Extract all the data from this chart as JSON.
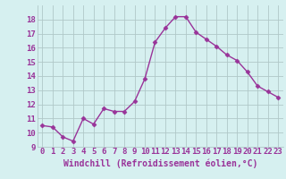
{
  "x": [
    0,
    1,
    2,
    3,
    4,
    5,
    6,
    7,
    8,
    9,
    10,
    11,
    12,
    13,
    14,
    15,
    16,
    17,
    18,
    19,
    20,
    21,
    22,
    23
  ],
  "y": [
    10.5,
    10.4,
    9.7,
    9.4,
    11.0,
    10.6,
    11.7,
    11.5,
    11.5,
    12.2,
    13.8,
    16.4,
    17.4,
    18.2,
    18.2,
    17.1,
    16.6,
    16.1,
    15.5,
    15.1,
    14.3,
    13.3,
    12.9,
    12.5
  ],
  "line_color": "#993399",
  "marker": "D",
  "marker_size": 2.5,
  "line_width": 1.0,
  "bg_color": "#d6f0f0",
  "grid_color": "#b0c8c8",
  "xlabel": "Windchill (Refroidissement éolien,°C)",
  "xlabel_color": "#993399",
  "xlabel_fontsize": 7,
  "tick_color": "#993399",
  "tick_fontsize": 6.5,
  "ylim": [
    9,
    19
  ],
  "xlim": [
    -0.5,
    23.5
  ],
  "yticks": [
    9,
    10,
    11,
    12,
    13,
    14,
    15,
    16,
    17,
    18
  ],
  "xticks": [
    0,
    1,
    2,
    3,
    4,
    5,
    6,
    7,
    8,
    9,
    10,
    11,
    12,
    13,
    14,
    15,
    16,
    17,
    18,
    19,
    20,
    21,
    22,
    23
  ]
}
